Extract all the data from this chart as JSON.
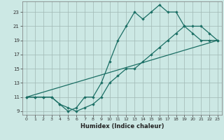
{
  "xlabel": "Humidex (Indice chaleur)",
  "bg_color": "#cce8e4",
  "grid_color": "#a0b8b4",
  "line_color": "#1a6e64",
  "xlim": [
    -0.5,
    23.5
  ],
  "ylim": [
    8.5,
    24.5
  ],
  "xticks": [
    0,
    1,
    2,
    3,
    4,
    5,
    6,
    7,
    8,
    9,
    10,
    11,
    12,
    13,
    14,
    15,
    16,
    17,
    18,
    19,
    20,
    21,
    22,
    23
  ],
  "yticks": [
    9,
    11,
    13,
    15,
    17,
    19,
    21,
    23
  ],
  "line1_x": [
    0,
    1,
    2,
    3,
    4,
    5,
    6,
    7,
    8,
    9,
    10,
    11,
    12,
    13,
    14,
    15,
    16,
    17,
    18,
    19,
    20,
    21,
    22,
    23
  ],
  "line1_y": [
    11,
    11,
    11,
    11,
    10,
    9,
    9.5,
    11,
    11,
    13,
    16,
    19,
    21,
    23,
    22,
    23,
    24,
    23,
    23,
    21,
    20,
    19,
    19,
    19
  ],
  "line2_x": [
    0,
    1,
    2,
    3,
    4,
    5,
    6,
    7,
    8,
    9,
    10,
    11,
    12,
    13,
    14,
    15,
    16,
    17,
    18,
    19,
    20,
    21,
    22,
    23
  ],
  "line2_y": [
    11,
    11,
    11,
    11,
    10,
    9.5,
    9,
    9.5,
    10,
    11,
    13,
    14,
    15,
    15,
    16,
    17,
    18,
    19,
    20,
    21,
    21,
    21,
    20,
    19
  ],
  "line3_x": [
    0,
    23
  ],
  "line3_y": [
    11,
    19
  ]
}
